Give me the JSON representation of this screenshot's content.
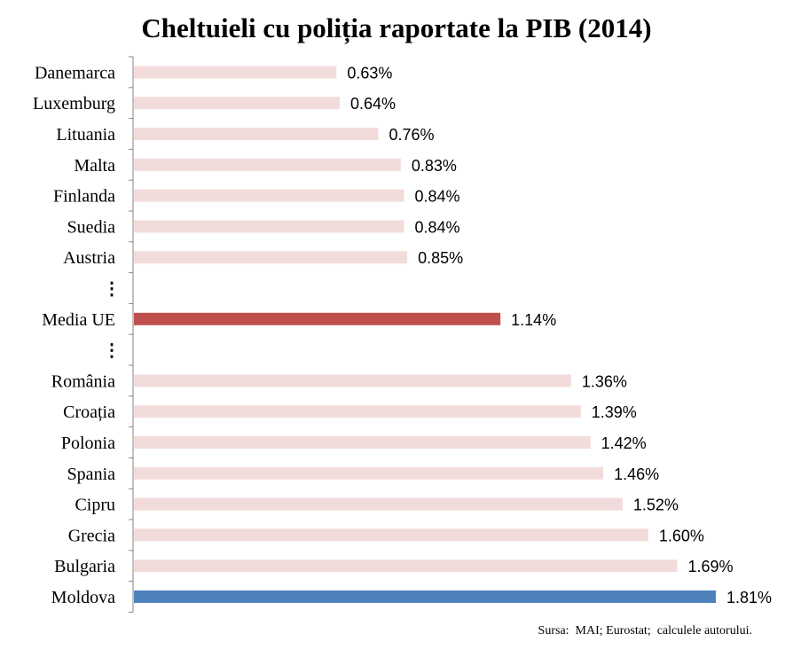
{
  "chart_data": {
    "type": "bar",
    "orientation": "horizontal",
    "title": "Cheltuieli cu poliția raportate la PIB (2014)",
    "xlabel": "",
    "ylabel": "",
    "xlim": [
      0,
      1.81
    ],
    "grid": false,
    "legend": "none",
    "categories": [
      "Danemarca",
      "Luxemburg",
      "Lituania",
      "Malta",
      "Finlanda",
      "Suedia",
      "Austria",
      "⋮",
      "Media UE",
      "⋮",
      "România",
      "Croația",
      "Polonia",
      "Spania",
      "Cipru",
      "Grecia",
      "Bulgaria",
      "Moldova"
    ],
    "values": [
      0.63,
      0.64,
      0.76,
      0.83,
      0.84,
      0.84,
      0.85,
      null,
      1.14,
      null,
      1.36,
      1.39,
      1.42,
      1.46,
      1.52,
      1.6,
      1.69,
      1.81
    ],
    "value_labels": [
      "0.63%",
      "0.64%",
      "0.76%",
      "0.83%",
      "0.84%",
      "0.84%",
      "0.85%",
      "",
      "1.14%",
      "",
      "1.36%",
      "1.39%",
      "1.42%",
      "1.46%",
      "1.52%",
      "1.60%",
      "1.69%",
      "1.81%"
    ],
    "colors": {
      "default": "#f2dcdb",
      "Media UE": "#c0504d",
      "Moldova": "#4f81bd",
      "axis": "#868686"
    }
  },
  "source": "Sursa:  MAI; Eurostat;  calculele autorului."
}
